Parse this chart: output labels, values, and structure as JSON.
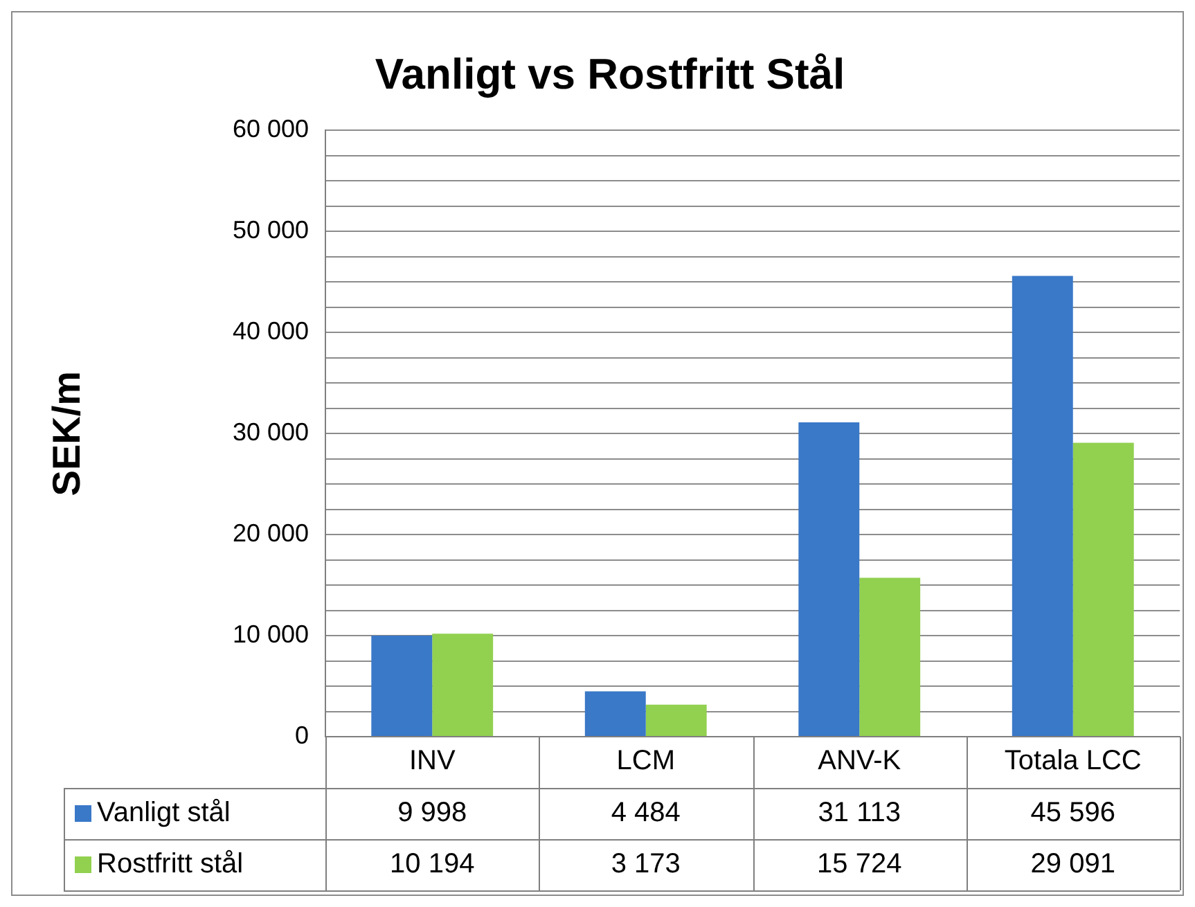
{
  "chart_data": {
    "type": "bar",
    "title": "Vanligt vs Rostfritt Stål",
    "ylabel": "SEK/m",
    "categories": [
      "INV",
      "LCM",
      "ANV-K",
      "Totala LCC"
    ],
    "series": [
      {
        "name": "Vanligt stål",
        "color": "#3a78c8",
        "values": [
          9998,
          4484,
          31113,
          45596
        ]
      },
      {
        "name": "Rostfritt stål",
        "color": "#92d050",
        "values": [
          10194,
          3173,
          15724,
          29091
        ]
      }
    ],
    "ylim": [
      0,
      60000
    ],
    "yticks": [
      {
        "value": 0,
        "label": "0"
      },
      {
        "value": 2500,
        "label": null
      },
      {
        "value": 5000,
        "label": null
      },
      {
        "value": 7500,
        "label": null
      },
      {
        "value": 10000,
        "label": "10 000"
      },
      {
        "value": 12500,
        "label": null
      },
      {
        "value": 15000,
        "label": null
      },
      {
        "value": 17500,
        "label": null
      },
      {
        "value": 20000,
        "label": "20 000"
      },
      {
        "value": 22500,
        "label": null
      },
      {
        "value": 25000,
        "label": null
      },
      {
        "value": 27500,
        "label": null
      },
      {
        "value": 30000,
        "label": "30 000"
      },
      {
        "value": 32500,
        "label": null
      },
      {
        "value": 35000,
        "label": null
      },
      {
        "value": 37500,
        "label": null
      },
      {
        "value": 40000,
        "label": "40 000"
      },
      {
        "value": 42500,
        "label": null
      },
      {
        "value": 45000,
        "label": null
      },
      {
        "value": 47500,
        "label": null
      },
      {
        "value": 50000,
        "label": "50 000"
      },
      {
        "value": 52500,
        "label": null
      },
      {
        "value": 55000,
        "label": null
      },
      {
        "value": 57500,
        "label": null
      },
      {
        "value": 60000,
        "label": "60 000"
      }
    ],
    "grid": "y",
    "legend": "bottom",
    "data_labels": true
  }
}
